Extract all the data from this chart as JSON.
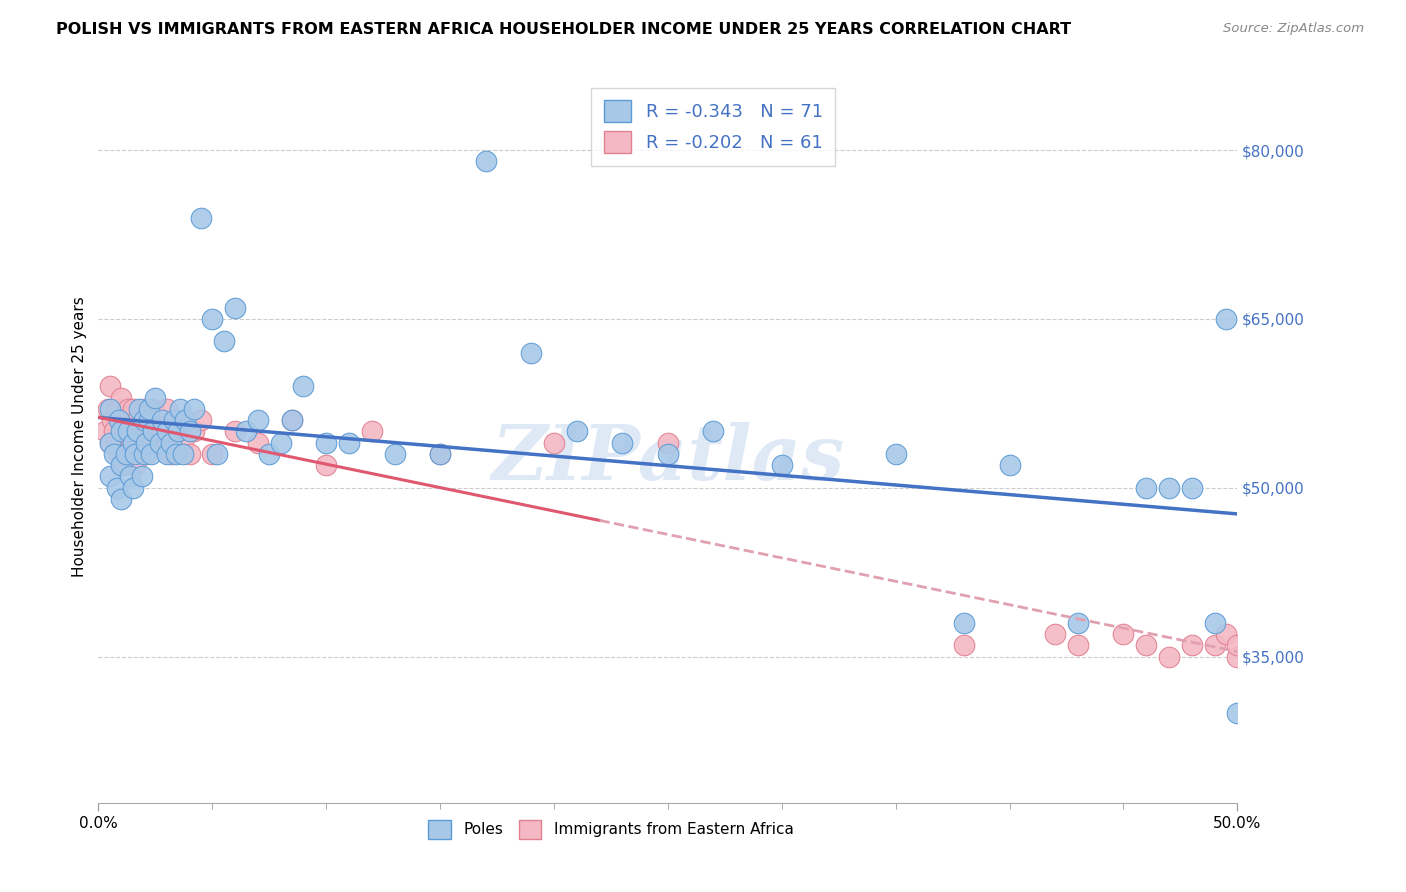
{
  "title": "POLISH VS IMMIGRANTS FROM EASTERN AFRICA HOUSEHOLDER INCOME UNDER 25 YEARS CORRELATION CHART",
  "source": "Source: ZipAtlas.com",
  "ylabel": "Householder Income Under 25 years",
  "x_min": 0.0,
  "x_max": 0.5,
  "y_min": 22000,
  "y_max": 87000,
  "y_ticks": [
    35000,
    50000,
    65000,
    80000
  ],
  "y_tick_labels": [
    "$35,000",
    "$50,000",
    "$65,000",
    "$80,000"
  ],
  "poles_color": "#a8c8e8",
  "poles_edge_color": "#5b9bd5",
  "eastern_africa_color": "#f4b8c4",
  "eastern_africa_edge_color": "#e08090",
  "poles_R": "-0.343",
  "poles_N": "71",
  "eastern_africa_R": "-0.202",
  "eastern_africa_N": "61",
  "legend_label_poles": "Poles",
  "legend_label_eastern_africa": "Immigrants from Eastern Africa",
  "poles_trend_color": "#4472c4",
  "eastern_africa_trend_color": "#e05870",
  "dashed_trend_color": "#e0a0b0",
  "watermark": "ZIPatlas",
  "poles_x": [
    0.005,
    0.005,
    0.005,
    0.007,
    0.008,
    0.009,
    0.01,
    0.01,
    0.01,
    0.012,
    0.013,
    0.014,
    0.015,
    0.015,
    0.016,
    0.017,
    0.018,
    0.019,
    0.02,
    0.02,
    0.021,
    0.022,
    0.022,
    0.023,
    0.024,
    0.025,
    0.027,
    0.028,
    0.03,
    0.03,
    0.032,
    0.033,
    0.034,
    0.035,
    0.036,
    0.037,
    0.038,
    0.04,
    0.042,
    0.045,
    0.05,
    0.052,
    0.055,
    0.06,
    0.065,
    0.07,
    0.075,
    0.08,
    0.085,
    0.09,
    0.1,
    0.11,
    0.13,
    0.15,
    0.17,
    0.19,
    0.21,
    0.23,
    0.25,
    0.27,
    0.3,
    0.35,
    0.38,
    0.4,
    0.43,
    0.46,
    0.47,
    0.48,
    0.49,
    0.495,
    0.5
  ],
  "poles_y": [
    57000,
    54000,
    51000,
    53000,
    50000,
    56000,
    55000,
    52000,
    49000,
    53000,
    55000,
    51000,
    54000,
    50000,
    53000,
    55000,
    57000,
    51000,
    53000,
    56000,
    54000,
    56000,
    57000,
    53000,
    55000,
    58000,
    54000,
    56000,
    53000,
    55000,
    54000,
    56000,
    53000,
    55000,
    57000,
    53000,
    56000,
    55000,
    57000,
    74000,
    65000,
    53000,
    63000,
    66000,
    55000,
    56000,
    53000,
    54000,
    56000,
    59000,
    54000,
    54000,
    53000,
    53000,
    79000,
    62000,
    55000,
    54000,
    53000,
    55000,
    52000,
    53000,
    38000,
    52000,
    38000,
    50000,
    50000,
    50000,
    38000,
    65000,
    30000
  ],
  "eastern_africa_x": [
    0.003,
    0.004,
    0.005,
    0.005,
    0.006,
    0.007,
    0.008,
    0.008,
    0.009,
    0.01,
    0.01,
    0.011,
    0.012,
    0.013,
    0.013,
    0.014,
    0.015,
    0.015,
    0.016,
    0.017,
    0.018,
    0.019,
    0.02,
    0.02,
    0.021,
    0.022,
    0.023,
    0.024,
    0.025,
    0.026,
    0.027,
    0.028,
    0.03,
    0.03,
    0.032,
    0.033,
    0.035,
    0.037,
    0.04,
    0.042,
    0.045,
    0.05,
    0.06,
    0.07,
    0.085,
    0.1,
    0.12,
    0.15,
    0.2,
    0.25,
    0.38,
    0.42,
    0.43,
    0.45,
    0.46,
    0.47,
    0.48,
    0.49,
    0.495,
    0.5,
    0.5
  ],
  "eastern_africa_y": [
    55000,
    57000,
    59000,
    54000,
    56000,
    55000,
    54000,
    57000,
    53000,
    56000,
    58000,
    52000,
    55000,
    53000,
    57000,
    55000,
    54000,
    57000,
    52000,
    56000,
    54000,
    55000,
    54000,
    57000,
    53000,
    56000,
    55000,
    57000,
    55000,
    54000,
    56000,
    55000,
    54000,
    57000,
    53000,
    55000,
    56000,
    54000,
    53000,
    55000,
    56000,
    53000,
    55000,
    54000,
    56000,
    52000,
    55000,
    53000,
    54000,
    54000,
    36000,
    37000,
    36000,
    37000,
    36000,
    35000,
    36000,
    36000,
    37000,
    35000,
    36000
  ]
}
